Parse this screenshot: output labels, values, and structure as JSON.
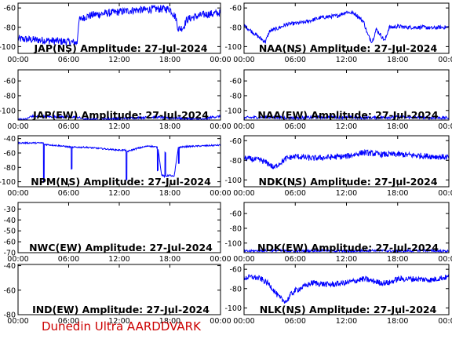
{
  "figure": {
    "footer": "Dunedin Ultra AARDDVARK",
    "colors": {
      "trace": "#0000ff",
      "axis": "#000000",
      "footer": "#cc0000"
    }
  },
  "chart_data": [
    {
      "type": "line",
      "station": "JAP(NS)",
      "title": "JAP(NS) Amplitude: 27-Jul-2024",
      "x_ticks": [
        "00:00",
        "06:00",
        "12:00",
        "18:00",
        "00:00"
      ],
      "y_ticks": [
        -100,
        -80,
        -60
      ],
      "ylim": [
        -107,
        -55
      ],
      "xlim": [
        0,
        24
      ],
      "series": [
        {
          "x": [
            0,
            2,
            4,
            6,
            7,
            7.2,
            8,
            9,
            10,
            11,
            12,
            13,
            14,
            15,
            16,
            17,
            18,
            18.7,
            19,
            19.6,
            20,
            21,
            22,
            23,
            24
          ],
          "y": [
            -92,
            -93,
            -94,
            -95,
            -96,
            -73,
            -69,
            -67,
            -66,
            -65,
            -64,
            -63,
            -62,
            -62,
            -61,
            -61,
            -61,
            -70,
            -82,
            -80,
            -72,
            -69,
            -67,
            -66,
            -65
          ],
          "noise": 4
        }
      ]
    },
    {
      "type": "line",
      "station": "NAA(NS)",
      "title": "NAA(NS) Amplitude: 27-Jul-2024",
      "x_ticks": [
        "00:00",
        "06:00",
        "12:00",
        "18:00",
        "00:00"
      ],
      "y_ticks": [
        -100,
        -80,
        -60
      ],
      "ylim": [
        -107,
        -55
      ],
      "xlim": [
        0,
        24
      ],
      "series": [
        {
          "x": [
            0,
            1,
            2,
            2.5,
            3,
            4,
            5,
            7,
            9,
            11,
            12,
            13,
            14,
            14.5,
            15,
            15.5,
            16,
            16.5,
            17,
            17.5,
            18,
            19,
            20,
            21,
            22,
            23,
            24
          ],
          "y": [
            -78,
            -85,
            -92,
            -95,
            -84,
            -81,
            -77,
            -75,
            -70,
            -68,
            -64,
            -66,
            -74,
            -88,
            -95,
            -82,
            -88,
            -94,
            -80,
            -80,
            -79,
            -80,
            -80,
            -80,
            -81,
            -80,
            -80
          ],
          "noise": 2
        }
      ]
    },
    {
      "type": "line",
      "station": "JAP(EW)",
      "title": "JAP(EW) Amplitude: 27-Jul-2024",
      "x_ticks": [
        "00:00",
        "06:00",
        "12:00",
        "18:00",
        "00:00"
      ],
      "y_ticks": [
        -100,
        -80,
        -60
      ],
      "ylim": [
        -113,
        -45
      ],
      "xlim": [
        0,
        24
      ],
      "series": [
        {
          "x": [
            0,
            1,
            1.5,
            7,
            8,
            12,
            16,
            22,
            23,
            24
          ],
          "y": [
            -112,
            -112,
            -108,
            -109,
            -112,
            -111,
            -109,
            -112,
            -109,
            -108
          ],
          "noise": 1.5
        }
      ]
    },
    {
      "type": "line",
      "station": "NAA(EW)",
      "title": "NAA(EW) Amplitude: 27-Jul-2024",
      "x_ticks": [
        "00:00",
        "06:00",
        "12:00",
        "18:00",
        "00:00"
      ],
      "y_ticks": [
        -100,
        -80,
        -60
      ],
      "ylim": [
        -113,
        -45
      ],
      "xlim": [
        0,
        24
      ],
      "series": [
        {
          "x": [
            0,
            2,
            6,
            10,
            14,
            18,
            22,
            24
          ],
          "y": [
            -110,
            -109,
            -110,
            -109,
            -110,
            -109,
            -110,
            -110
          ],
          "noise": 2
        }
      ]
    },
    {
      "type": "line",
      "station": "NPM(NS)",
      "title": "NPM(NS) Amplitude: 27-Jul-2024",
      "x_ticks": [
        "00:00",
        "06:00",
        "12:00",
        "18:00",
        "00:00"
      ],
      "y_ticks": [
        -100,
        -80,
        -60,
        -40
      ],
      "ylim": [
        -107,
        -36
      ],
      "xlim": [
        0,
        24
      ],
      "series": [
        {
          "x": [
            0,
            2,
            3,
            3.01,
            3.1,
            3.11,
            5,
            6.3,
            6.31,
            6.4,
            6.41,
            8,
            10,
            12,
            12.8,
            12.81,
            12.9,
            12.91,
            14,
            15.5,
            16.5,
            16.51,
            16.6,
            16.61,
            17,
            17.4,
            17.41,
            17.5,
            17.51,
            18,
            18.5,
            19,
            19.01,
            19.1,
            19.11,
            20,
            22,
            24
          ],
          "y": [
            -46,
            -46,
            -46,
            -100,
            -100,
            -48,
            -50,
            -52,
            -82,
            -82,
            -52,
            -52,
            -54,
            -56,
            -56,
            -98,
            -98,
            -58,
            -54,
            -50,
            -52,
            -84,
            -84,
            -54,
            -90,
            -93,
            -60,
            -60,
            -92,
            -91,
            -93,
            -52,
            -74,
            -74,
            -52,
            -51,
            -50,
            -49
          ],
          "noise": 1
        }
      ]
    },
    {
      "type": "line",
      "station": "NDK(NS)",
      "title": "NDK(NS) Amplitude: 27-Jul-2024",
      "x_ticks": [
        "00:00",
        "06:00",
        "12:00",
        "18:00",
        "00:00"
      ],
      "y_ticks": [
        -100,
        -80,
        -60
      ],
      "ylim": [
        -107,
        -55
      ],
      "xlim": [
        0,
        24
      ],
      "series": [
        {
          "x": [
            0,
            2,
            3,
            3.5,
            4,
            5,
            6,
            8,
            10,
            12,
            14,
            16,
            18,
            20,
            22,
            24
          ],
          "y": [
            -78,
            -80,
            -84,
            -88,
            -84,
            -78,
            -76,
            -78,
            -77,
            -76,
            -72,
            -74,
            -74,
            -75,
            -76,
            -77
          ],
          "noise": 3
        }
      ]
    },
    {
      "type": "line",
      "station": "NWC(EW)",
      "title": "NWC(EW) Amplitude: 27-Jul-2024",
      "x_ticks": [
        "00:00",
        "06:00",
        "12:00",
        "18:00",
        "00:00"
      ],
      "y_ticks": [
        -70,
        -60,
        -50,
        -40,
        -30
      ],
      "ylim": [
        -70,
        -24
      ],
      "xlim": [
        0,
        24
      ],
      "series": []
    },
    {
      "type": "line",
      "station": "NDK(EW)",
      "title": "NDK(EW) Amplitude: 27-Jul-2024",
      "x_ticks": [
        "00:00",
        "06:00",
        "12:00",
        "18:00",
        "00:00"
      ],
      "y_ticks": [
        -100,
        -80,
        -60
      ],
      "ylim": [
        -113,
        -45
      ],
      "xlim": [
        0,
        24
      ],
      "series": [
        {
          "x": [
            0,
            3,
            6,
            9,
            12,
            15,
            18,
            21,
            24
          ],
          "y": [
            -111,
            -110,
            -111,
            -110,
            -111,
            -110,
            -111,
            -110,
            -111
          ],
          "noise": 1.5
        }
      ]
    },
    {
      "type": "line",
      "station": "IND(EW)",
      "title": "IND(EW) Amplitude: 27-Jul-2024",
      "x_ticks": [
        "00:00",
        "06:00",
        "12:00",
        "18:00",
        "00:00"
      ],
      "y_ticks": [
        -80,
        -60,
        -40
      ],
      "ylim": [
        -80,
        -39
      ],
      "xlim": [
        0,
        24
      ],
      "series": []
    },
    {
      "type": "line",
      "station": "NLK(NS)",
      "title": "NLK(NS) Amplitude: 27-Jul-2024",
      "x_ticks": [
        "00:00",
        "06:00",
        "12:00",
        "18:00",
        "00:00"
      ],
      "y_ticks": [
        -100,
        -80,
        -60
      ],
      "ylim": [
        -107,
        -55
      ],
      "xlim": [
        0,
        24
      ],
      "series": [
        {
          "x": [
            0,
            1,
            2,
            3,
            3.5,
            4,
            4.5,
            5,
            5.5,
            6,
            7,
            8,
            10,
            12,
            13,
            14,
            15,
            16,
            17,
            18,
            20,
            22,
            23,
            24
          ],
          "y": [
            -69,
            -68,
            -70,
            -76,
            -82,
            -88,
            -92,
            -93,
            -86,
            -82,
            -78,
            -74,
            -76,
            -74,
            -72,
            -70,
            -72,
            -74,
            -74,
            -70,
            -70,
            -71,
            -69,
            -68
          ],
          "noise": 3
        }
      ]
    }
  ]
}
